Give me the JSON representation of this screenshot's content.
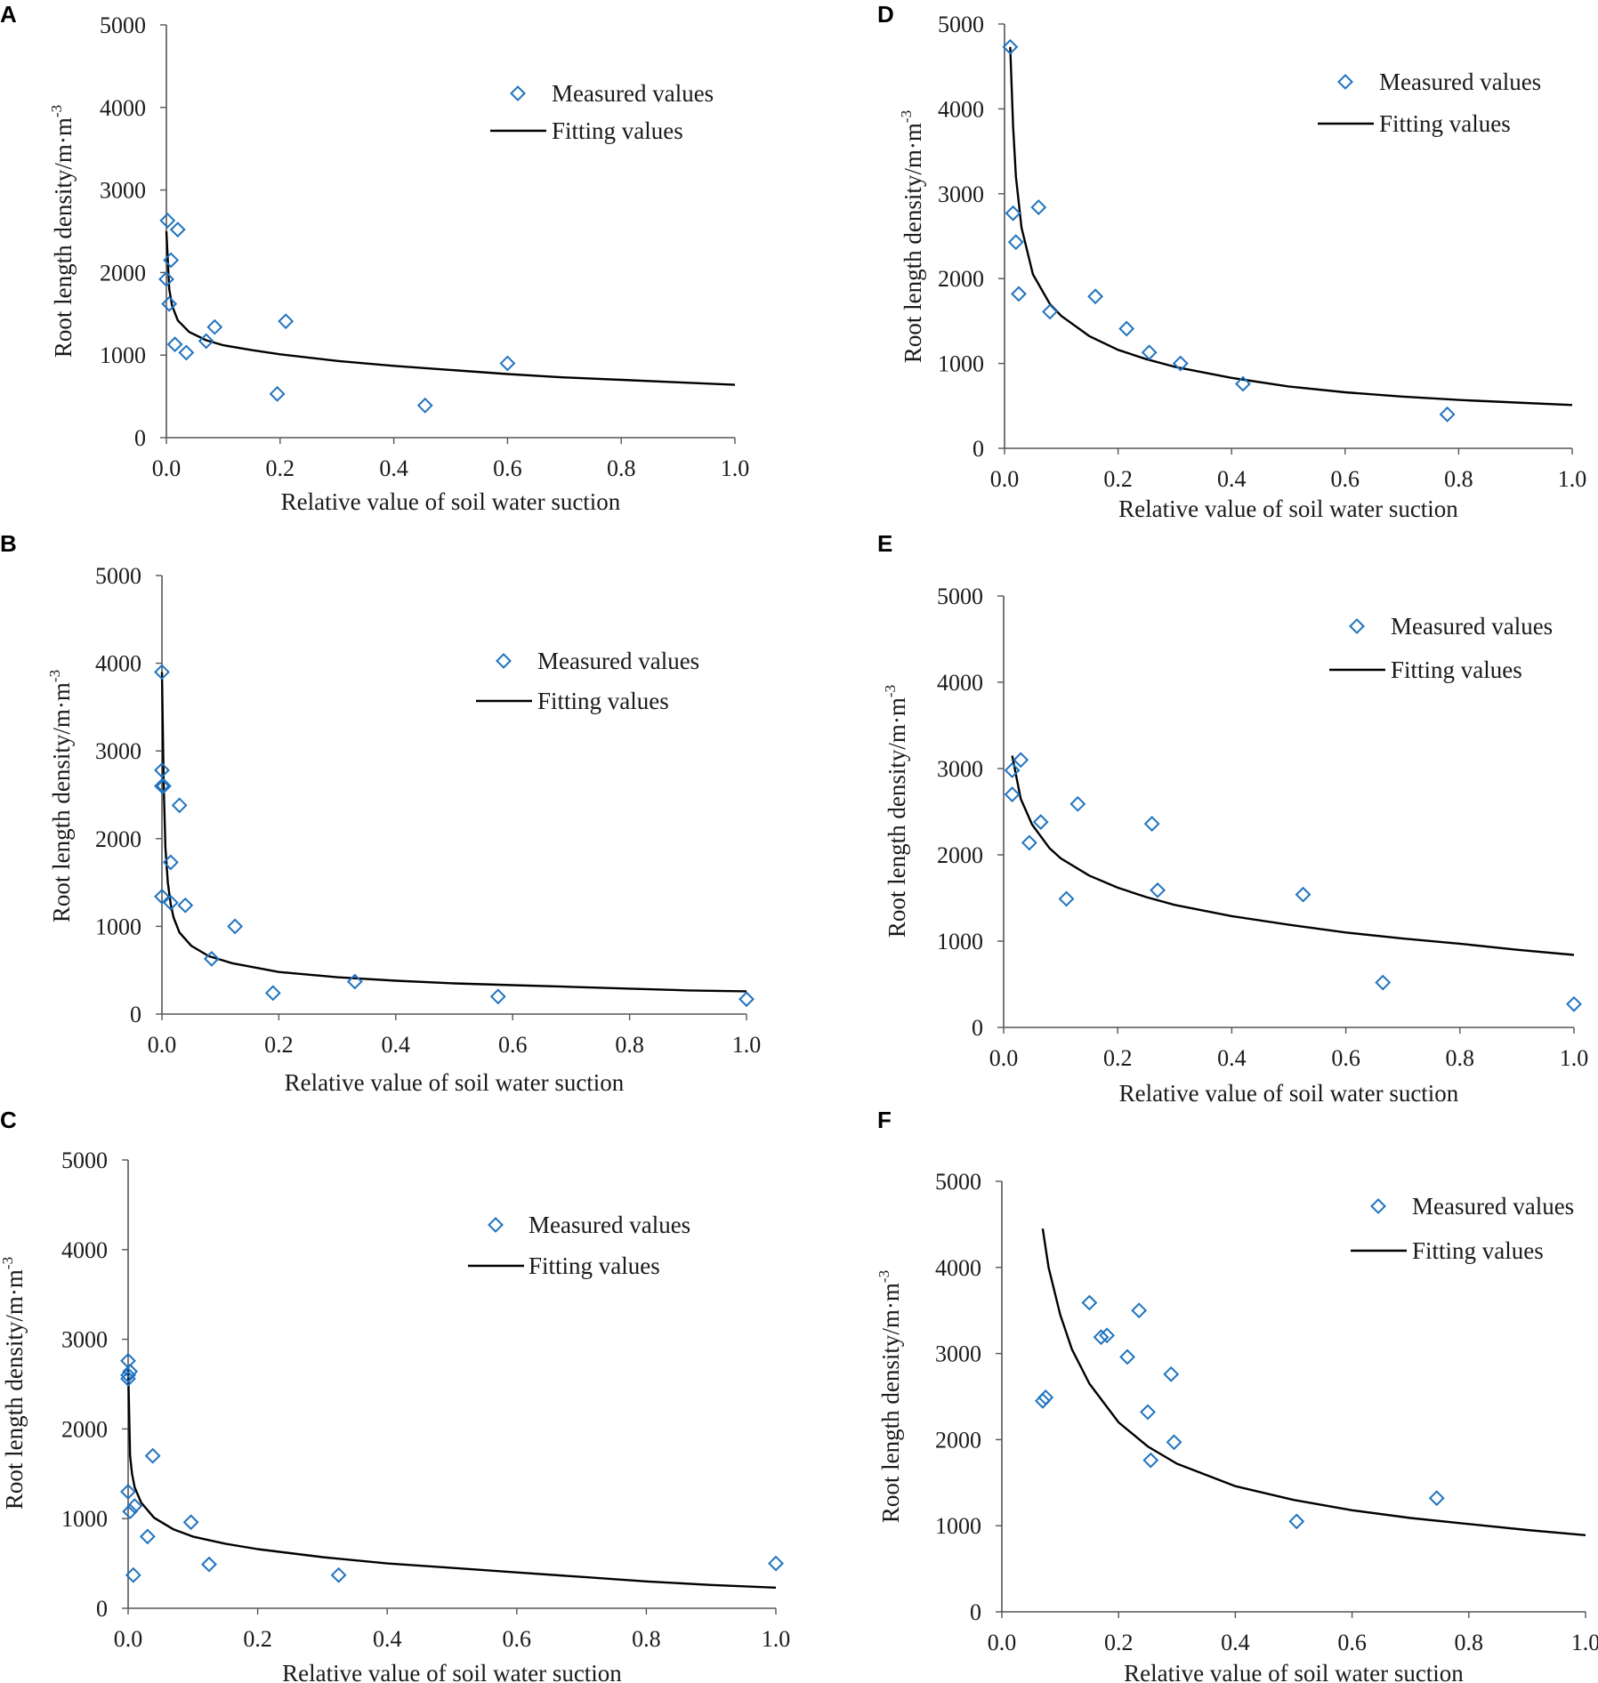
{
  "figure": {
    "measured_color": "#1f73c0",
    "fit_color": "#000000"
  },
  "chart_data": [
    {
      "panel": "A",
      "type": "scatter",
      "xlabel": "Relative value of soil water suction",
      "ylabel": "Root length density/m·m",
      "ylabel_sup": "-3",
      "xlim": [
        0,
        1
      ],
      "ylim": [
        0,
        5000
      ],
      "xticks": [
        "0.0",
        "0.2",
        "0.4",
        "0.6",
        "0.8",
        "1.0"
      ],
      "yticks": [
        "0",
        "1000",
        "2000",
        "3000",
        "4000",
        "5000"
      ],
      "legend": [
        "Measured values",
        "Fitting values"
      ],
      "legend_position": "top-right",
      "measured": {
        "x": [
          0.002,
          0.02,
          0.008,
          0.0,
          0.005,
          0.015,
          0.035,
          0.07,
          0.085,
          0.195,
          0.21,
          0.455,
          0.6
        ],
        "y": [
          2630,
          2520,
          2150,
          1920,
          1620,
          1130,
          1030,
          1170,
          1340,
          530,
          1410,
          390,
          900
        ]
      },
      "fitting": {
        "x": [
          0.0,
          0.005,
          0.01,
          0.02,
          0.04,
          0.07,
          0.1,
          0.15,
          0.2,
          0.3,
          0.4,
          0.5,
          0.6,
          0.7,
          0.8,
          0.9,
          1.0
        ],
        "y": [
          2500,
          1800,
          1600,
          1420,
          1280,
          1180,
          1120,
          1060,
          1010,
          930,
          870,
          820,
          770,
          730,
          700,
          670,
          640
        ]
      }
    },
    {
      "panel": "B",
      "type": "scatter",
      "xlabel": "Relative value of soil water suction",
      "ylabel": "Root length density/m·m",
      "ylabel_sup": "-3",
      "xlim": [
        0,
        1
      ],
      "ylim": [
        0,
        5000
      ],
      "xticks": [
        "0.0",
        "0.2",
        "0.4",
        "0.6",
        "0.8",
        "1.0"
      ],
      "yticks": [
        "0",
        "1000",
        "2000",
        "3000",
        "4000",
        "5000"
      ],
      "legend": [
        "Measured values",
        "Fitting values"
      ],
      "legend_position": "top-right",
      "measured": {
        "x": [
          0.0,
          0.0,
          0.0,
          0.003,
          0.03,
          0.015,
          0.0,
          0.015,
          0.04,
          0.085,
          0.125,
          0.19,
          0.33,
          0.575,
          1.0
        ],
        "y": [
          3900,
          2780,
          2600,
          2600,
          2380,
          1730,
          1340,
          1270,
          1240,
          630,
          1000,
          240,
          370,
          200,
          170
        ]
      },
      "fitting": {
        "x": [
          0.0,
          0.003,
          0.006,
          0.01,
          0.015,
          0.02,
          0.03,
          0.05,
          0.08,
          0.12,
          0.2,
          0.3,
          0.4,
          0.5,
          0.6,
          0.7,
          0.8,
          0.9,
          1.0
        ],
        "y": [
          3900,
          2600,
          1900,
          1500,
          1250,
          1100,
          930,
          780,
          660,
          580,
          480,
          420,
          380,
          350,
          330,
          310,
          290,
          270,
          260
        ]
      }
    },
    {
      "panel": "C",
      "type": "scatter",
      "xlabel": "Relative value of soil water suction",
      "ylabel": "Root length density/m·m",
      "ylabel_sup": "-3",
      "xlim": [
        0,
        1
      ],
      "ylim": [
        0,
        5000
      ],
      "xticks": [
        "0.0",
        "0.2",
        "0.4",
        "0.6",
        "0.8",
        "1.0"
      ],
      "yticks": [
        "0",
        "1000",
        "2000",
        "3000",
        "4000",
        "5000"
      ],
      "legend": [
        "Measured values",
        "Fitting values"
      ],
      "legend_position": "top-right",
      "measured": {
        "x": [
          0.0,
          0.003,
          0.0,
          0.0,
          0.038,
          0.0,
          0.01,
          0.003,
          0.097,
          0.03,
          0.008,
          0.125,
          0.325,
          1.0
        ],
        "y": [
          2760,
          2640,
          2600,
          2560,
          1700,
          1300,
          1140,
          1080,
          960,
          800,
          370,
          490,
          370,
          500
        ]
      },
      "fitting": {
        "x": [
          0.0,
          0.003,
          0.006,
          0.01,
          0.02,
          0.04,
          0.07,
          0.1,
          0.15,
          0.2,
          0.3,
          0.4,
          0.5,
          0.6,
          0.7,
          0.8,
          0.9,
          1.0
        ],
        "y": [
          2700,
          1700,
          1500,
          1350,
          1180,
          1010,
          880,
          800,
          720,
          660,
          570,
          500,
          450,
          400,
          350,
          300,
          260,
          230
        ]
      }
    },
    {
      "panel": "D",
      "type": "scatter",
      "xlabel": "Relative value of soil water suction",
      "ylabel": "Root length density/m·m",
      "ylabel_sup": "-3",
      "xlim": [
        0,
        1
      ],
      "ylim": [
        0,
        5000
      ],
      "xticks": [
        "0.0",
        "0.2",
        "0.4",
        "0.6",
        "0.8",
        "1.0"
      ],
      "yticks": [
        "0",
        "1000",
        "2000",
        "3000",
        "4000",
        "5000"
      ],
      "legend": [
        "Measured values",
        "Fitting values"
      ],
      "legend_position": "top-right",
      "measured": {
        "x": [
          0.01,
          0.015,
          0.02,
          0.06,
          0.025,
          0.08,
          0.16,
          0.215,
          0.255,
          0.31,
          0.42,
          0.78
        ],
        "y": [
          4730,
          2770,
          2430,
          2840,
          1820,
          1610,
          1790,
          1410,
          1130,
          1000,
          760,
          400
        ]
      },
      "fitting": {
        "x": [
          0.01,
          0.015,
          0.02,
          0.03,
          0.05,
          0.08,
          0.1,
          0.15,
          0.2,
          0.25,
          0.3,
          0.4,
          0.5,
          0.6,
          0.7,
          0.8,
          0.9,
          1.0
        ],
        "y": [
          4730,
          3800,
          3200,
          2600,
          2050,
          1700,
          1560,
          1320,
          1160,
          1050,
          960,
          830,
          730,
          660,
          610,
          570,
          540,
          510
        ]
      }
    },
    {
      "panel": "E",
      "type": "scatter",
      "xlabel": "Relative value of soil water suction",
      "ylabel": "Root length density/m·m",
      "ylabel_sup": "-3",
      "xlim": [
        0,
        1
      ],
      "ylim": [
        0,
        5000
      ],
      "xticks": [
        "0.0",
        "0.2",
        "0.4",
        "0.6",
        "0.8",
        "1.0"
      ],
      "yticks": [
        "0",
        "1000",
        "2000",
        "3000",
        "4000",
        "5000"
      ],
      "legend": [
        "Measured values",
        "Fitting values"
      ],
      "legend_position": "top-right",
      "measured": {
        "x": [
          0.03,
          0.015,
          0.015,
          0.065,
          0.045,
          0.13,
          0.11,
          0.26,
          0.27,
          0.525,
          0.665,
          1.0
        ],
        "y": [
          3100,
          2980,
          2700,
          2380,
          2140,
          2590,
          1490,
          2360,
          1590,
          1540,
          520,
          270
        ]
      },
      "fitting": {
        "x": [
          0.015,
          0.03,
          0.05,
          0.08,
          0.1,
          0.15,
          0.2,
          0.25,
          0.3,
          0.4,
          0.5,
          0.6,
          0.7,
          0.8,
          0.9,
          1.0
        ],
        "y": [
          3150,
          2650,
          2350,
          2080,
          1960,
          1760,
          1620,
          1510,
          1420,
          1290,
          1190,
          1100,
          1030,
          970,
          900,
          840
        ]
      }
    },
    {
      "panel": "F",
      "type": "scatter",
      "xlabel": "Relative value of soil water suction",
      "ylabel": "Root length density/m·m",
      "ylabel_sup": "-3",
      "xlim": [
        0,
        1
      ],
      "ylim": [
        0,
        5000
      ],
      "xticks": [
        "0.0",
        "0.2",
        "0.4",
        "0.6",
        "0.8",
        "1.0"
      ],
      "yticks": [
        "0",
        "1000",
        "2000",
        "3000",
        "4000",
        "5000"
      ],
      "legend": [
        "Measured values",
        "Fitting values"
      ],
      "legend_position": "top-right",
      "measured": {
        "x": [
          0.15,
          0.235,
          0.17,
          0.18,
          0.215,
          0.29,
          0.075,
          0.07,
          0.25,
          0.295,
          0.255,
          0.505,
          0.745
        ],
        "y": [
          3590,
          3500,
          3190,
          3210,
          2960,
          2760,
          2490,
          2450,
          2320,
          1970,
          1760,
          1050,
          1320
        ]
      },
      "fitting": {
        "x": [
          0.07,
          0.08,
          0.1,
          0.12,
          0.15,
          0.2,
          0.25,
          0.3,
          0.4,
          0.5,
          0.6,
          0.7,
          0.8,
          0.9,
          1.0
        ],
        "y": [
          4450,
          4000,
          3450,
          3050,
          2650,
          2200,
          1920,
          1720,
          1460,
          1300,
          1180,
          1090,
          1020,
          950,
          890
        ]
      }
    }
  ]
}
